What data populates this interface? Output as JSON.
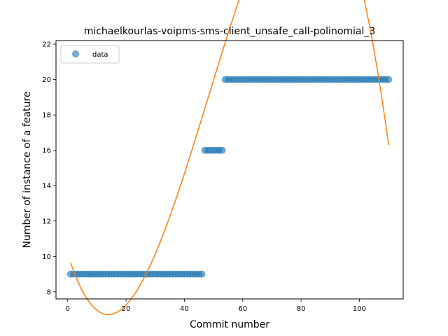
{
  "chart_data": {
    "type": "scatter",
    "title": "michaelkourlas-voipms-sms-client_unsafe_call-polinomial_3",
    "xlabel": "Commit number",
    "ylabel": "Number of instance of a feature",
    "xlim": [
      -4,
      115
    ],
    "ylim": [
      7.6,
      22.2
    ],
    "xticks": [
      0,
      20,
      40,
      60,
      80,
      100
    ],
    "yticks": [
      8,
      10,
      12,
      14,
      16,
      18,
      20,
      22
    ],
    "grid": false,
    "legend": {
      "position": "top-left",
      "entries": [
        "data"
      ]
    },
    "series": [
      {
        "name": "data",
        "kind": "points",
        "color": "#1f77b4",
        "segments": [
          {
            "x_from": 1,
            "x_to": 46,
            "y": 9
          },
          {
            "x_from": 47,
            "x_to": 53,
            "y": 16
          },
          {
            "x_from": 54,
            "x_to": 110,
            "y": 20
          }
        ]
      },
      {
        "name": "",
        "kind": "line",
        "color": "#ff7f0e",
        "polynomial_coefficients": [
          10.164,
          -0.5256,
          0.02206,
          -0.0001525
        ],
        "x_range": [
          1,
          110
        ]
      }
    ]
  }
}
